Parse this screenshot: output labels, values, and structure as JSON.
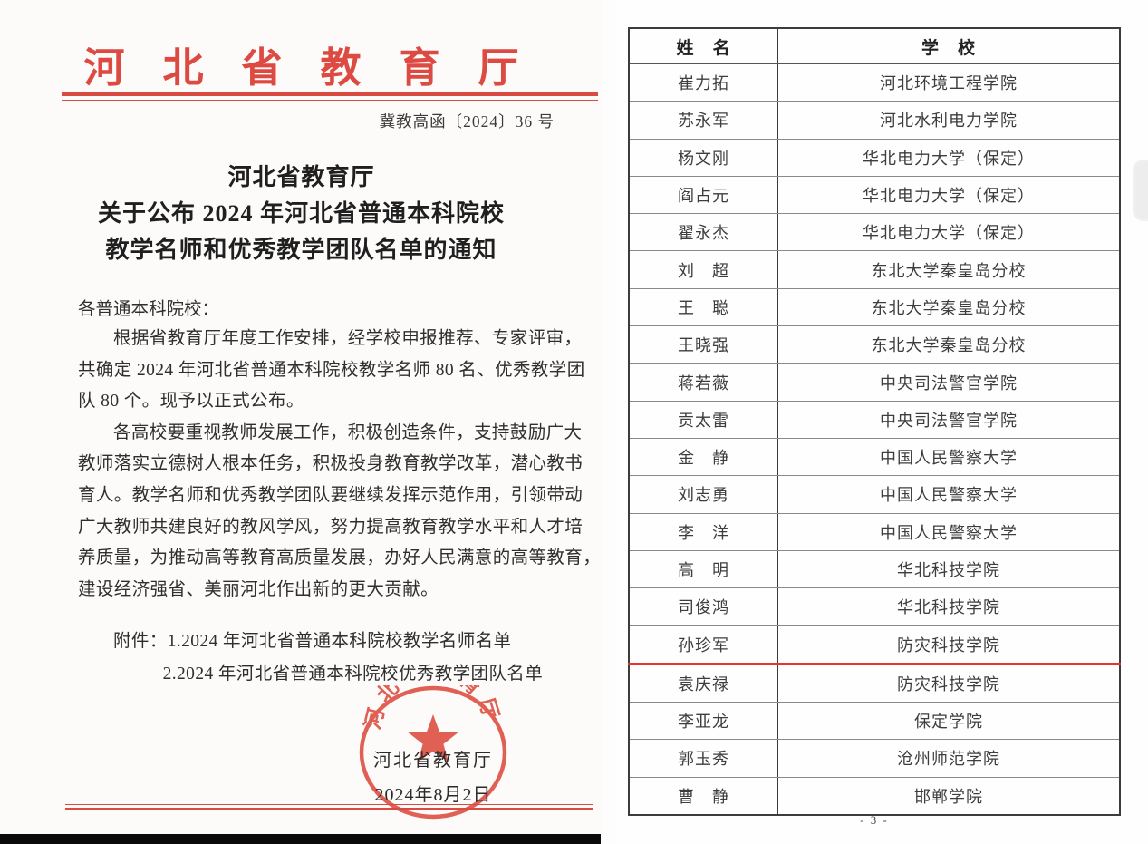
{
  "colors": {
    "accent_red": "#dc4a42",
    "seal_red": "#dd4b3e",
    "highlight_red": "#e8352a",
    "table_border": "#3c3c3c"
  },
  "notice": {
    "agency": "河北省教育厅",
    "doc_number": "冀教高函〔2024〕36 号",
    "title_lines": [
      "河北省教育厅",
      "关于公布 2024 年河北省普通本科院校",
      "教学名师和优秀教学团队名单的通知"
    ],
    "salutation": "各普通本科院校：",
    "body_lines": [
      {
        "text": "根据省教育厅年度工作安排，经学校申报推荐、专家评审，",
        "indent": 2
      },
      {
        "text": "共确定 2024 年河北省普通本科院校教学名师 80 名、优秀教学团",
        "indent": 0
      },
      {
        "text": "队 80 个。现予以正式公布。",
        "indent": 0
      },
      {
        "text": "各高校要重视教师发展工作，积极创造条件，支持鼓励广大",
        "indent": 2
      },
      {
        "text": "教师落实立德树人根本任务，积极投身教育教学改革，潜心教书",
        "indent": 0
      },
      {
        "text": "育人。教学名师和优秀教学团队要继续发挥示范作用，引领带动",
        "indent": 0
      },
      {
        "text": "广大教师共建良好的教风学风，努力提高教育教学水平和人才培",
        "indent": 0
      },
      {
        "text": "养质量，为推动高等教育高质量发展，办好人民满意的高等教育，",
        "indent": 0
      },
      {
        "text": "建设经济强省、美丽河北作出新的更大贡献。",
        "indent": 0
      }
    ],
    "attachment_lines": [
      {
        "text": "附件：1.2024 年河北省普通本科院校教学名师名单",
        "indent": 2
      },
      {
        "text": "2.2024 年河北省普通本科院校优秀教学团队名单",
        "indent": 4.8
      }
    ],
    "seal_text": "河北省教育厅",
    "signer": "河北省教育厅",
    "date": "2024年8月2日"
  },
  "roster": {
    "columns": [
      "姓　名",
      "学　校"
    ],
    "rows": [
      [
        "崔力拓",
        "河北环境工程学院"
      ],
      [
        "苏永军",
        "河北水利电力学院"
      ],
      [
        "杨文刚",
        "华北电力大学（保定）"
      ],
      [
        "阎占元",
        "华北电力大学（保定）"
      ],
      [
        "翟永杰",
        "华北电力大学（保定）"
      ],
      [
        "刘　超",
        "东北大学秦皇岛分校"
      ],
      [
        "王　聪",
        "东北大学秦皇岛分校"
      ],
      [
        "王晓强",
        "东北大学秦皇岛分校"
      ],
      [
        "蒋若薇",
        "中央司法警官学院"
      ],
      [
        "贡太雷",
        "中央司法警官学院"
      ],
      [
        "金　静",
        "中国人民警察大学"
      ],
      [
        "刘志勇",
        "中国人民警察大学"
      ],
      [
        "李　洋",
        "中国人民警察大学"
      ],
      [
        "高　明",
        "华北科技学院"
      ],
      [
        "司俊鸿",
        "华北科技学院"
      ],
      [
        "孙珍军",
        "防灾科技学院"
      ],
      [
        "袁庆禄",
        "防灾科技学院"
      ],
      [
        "李亚龙",
        "保定学院"
      ],
      [
        "郭玉秀",
        "沧州师范学院"
      ],
      [
        "曹　静",
        "邯郸学院"
      ]
    ],
    "red_line_after_row": 16,
    "page_number": "- 3 -"
  }
}
